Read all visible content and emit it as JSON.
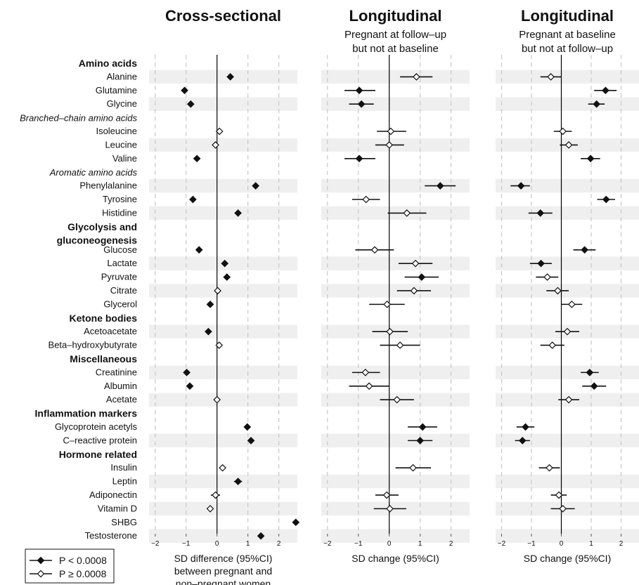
{
  "chart_data": {
    "type": "forest",
    "panels": [
      {
        "key": "cross",
        "title": "Cross-sectional",
        "subtitle": [],
        "xlabel": [
          "SD difference (95%CI)",
          "between pregnant and",
          "non–pregnant women"
        ]
      },
      {
        "key": "long1",
        "title": "Longitudinal",
        "subtitle": [
          "Pregnant at follow–up",
          "but not at baseline"
        ],
        "xlabel": [
          "SD change (95%CI)"
        ]
      },
      {
        "key": "long2",
        "title": "Longitudinal",
        "subtitle": [
          "Pregnant at baseline",
          "but not at follow–up"
        ],
        "xlabel": [
          "SD change (95%CI)"
        ]
      }
    ],
    "xlim": [
      -2.2,
      2.6
    ],
    "xticks": [
      -2,
      -1,
      0,
      1,
      2
    ],
    "xtick_labels": [
      "−2",
      "−1",
      "0",
      "1",
      "2"
    ],
    "legend": [
      {
        "marker": "filled-diamond",
        "label": "P < 0.0008"
      },
      {
        "marker": "open-diamond",
        "label": "P ≥ 0.0008"
      }
    ],
    "legend_position": "bottom-left",
    "rows": [
      {
        "kind": "group",
        "label": "Amino acids",
        "row": 0
      },
      {
        "kind": "item",
        "label": "Alanine",
        "row": 1,
        "cross": [
          0.43,
          0.4,
          0.46,
          1
        ],
        "long1": [
          0.88,
          0.35,
          1.4,
          0
        ],
        "long2": [
          -0.35,
          -0.7,
          0.0,
          0
        ]
      },
      {
        "kind": "item",
        "label": "Glutamine",
        "row": 2,
        "cross": [
          -1.05,
          -1.08,
          -1.02,
          1
        ],
        "long1": [
          -0.97,
          -1.45,
          -0.45,
          1
        ],
        "long2": [
          1.48,
          1.1,
          1.85,
          1
        ]
      },
      {
        "kind": "item",
        "label": "Glycine",
        "row": 3,
        "cross": [
          -0.85,
          -0.88,
          -0.82,
          1
        ],
        "long1": [
          -0.9,
          -1.3,
          -0.5,
          1
        ],
        "long2": [
          1.18,
          0.9,
          1.45,
          1
        ]
      },
      {
        "kind": "subgroup",
        "label": "Branched–chain amino acids",
        "row": 4
      },
      {
        "kind": "item",
        "label": "Isoleucine",
        "row": 5,
        "cross": [
          0.08,
          0.05,
          0.11,
          0
        ],
        "long1": [
          0.05,
          -0.4,
          0.55,
          0
        ],
        "long2": [
          0.05,
          -0.25,
          0.35,
          0
        ]
      },
      {
        "kind": "item",
        "label": "Leucine",
        "row": 6,
        "cross": [
          -0.05,
          -0.08,
          -0.02,
          0
        ],
        "long1": [
          0.0,
          -0.45,
          0.48,
          0
        ],
        "long2": [
          0.25,
          -0.05,
          0.55,
          0
        ]
      },
      {
        "kind": "item",
        "label": "Valine",
        "row": 7,
        "cross": [
          -0.65,
          -0.68,
          -0.62,
          1
        ],
        "long1": [
          -0.97,
          -1.45,
          -0.45,
          1
        ],
        "long2": [
          0.98,
          0.65,
          1.3,
          1
        ]
      },
      {
        "kind": "subgroup",
        "label": "Aromatic amino acids",
        "row": 8
      },
      {
        "kind": "item",
        "label": "Phenylalanine",
        "row": 9,
        "cross": [
          1.25,
          1.22,
          1.28,
          1
        ],
        "long1": [
          1.65,
          1.15,
          2.15,
          1
        ],
        "long2": [
          -1.35,
          -1.7,
          -1.05,
          1
        ]
      },
      {
        "kind": "item",
        "label": "Tyrosine",
        "row": 10,
        "cross": [
          -0.78,
          -0.81,
          -0.75,
          1
        ],
        "long1": [
          -0.75,
          -1.2,
          -0.3,
          0
        ],
        "long2": [
          1.5,
          1.2,
          1.8,
          1
        ]
      },
      {
        "kind": "item",
        "label": "Histidine",
        "row": 11,
        "cross": [
          0.68,
          0.65,
          0.71,
          1
        ],
        "long1": [
          0.57,
          -0.05,
          1.2,
          0
        ],
        "long2": [
          -0.7,
          -1.1,
          -0.3,
          1
        ]
      },
      {
        "kind": "group",
        "label": "Glycolysis and",
        "row": 12
      },
      {
        "kind": "group",
        "label": "gluconeogenesis",
        "row": 13
      },
      {
        "kind": "item",
        "label": "Glucose",
        "row": 13.7,
        "cross": [
          -0.58,
          -0.61,
          -0.55,
          1
        ],
        "long1": [
          -0.47,
          -1.1,
          0.15,
          0
        ],
        "long2": [
          0.78,
          0.4,
          1.15,
          1
        ]
      },
      {
        "kind": "item",
        "label": "Lactate",
        "row": 14.7,
        "cross": [
          0.25,
          0.22,
          0.28,
          1
        ],
        "long1": [
          0.85,
          0.3,
          1.4,
          0
        ],
        "long2": [
          -0.68,
          -1.05,
          -0.32,
          1
        ]
      },
      {
        "kind": "item",
        "label": "Pyruvate",
        "row": 15.7,
        "cross": [
          0.32,
          0.29,
          0.35,
          1
        ],
        "long1": [
          1.05,
          0.5,
          1.6,
          1
        ],
        "long2": [
          -0.47,
          -0.85,
          -0.1,
          0
        ]
      },
      {
        "kind": "item",
        "label": "Citrate",
        "row": 16.7,
        "cross": [
          0.02,
          -0.01,
          0.05,
          0
        ],
        "long1": [
          0.8,
          0.25,
          1.35,
          0
        ],
        "long2": [
          -0.12,
          -0.5,
          0.25,
          0
        ]
      },
      {
        "kind": "item",
        "label": "Glycerol",
        "row": 17.7,
        "cross": [
          -0.22,
          -0.25,
          -0.19,
          1
        ],
        "long1": [
          -0.07,
          -0.65,
          0.5,
          0
        ],
        "long2": [
          0.35,
          0.0,
          0.7,
          0
        ]
      },
      {
        "kind": "group",
        "label": "Ketone bodies",
        "row": 18.7
      },
      {
        "kind": "item",
        "label": "Acetoacetate",
        "row": 19.7,
        "cross": [
          -0.28,
          -0.31,
          -0.25,
          1
        ],
        "long1": [
          0.02,
          -0.55,
          0.6,
          0
        ],
        "long2": [
          0.2,
          -0.2,
          0.6,
          0
        ]
      },
      {
        "kind": "item",
        "label": "Beta–hydroxybutyrate",
        "row": 20.7,
        "cross": [
          0.07,
          0.04,
          0.1,
          0
        ],
        "long1": [
          0.35,
          -0.3,
          1.0,
          0
        ],
        "long2": [
          -0.3,
          -0.7,
          0.1,
          0
        ]
      },
      {
        "kind": "group",
        "label": "Miscellaneous",
        "row": 21.7
      },
      {
        "kind": "item",
        "label": "Creatinine",
        "row": 22.7,
        "cross": [
          -0.98,
          -1.01,
          -0.95,
          1
        ],
        "long1": [
          -0.77,
          -1.2,
          -0.3,
          0
        ],
        "long2": [
          0.95,
          0.65,
          1.25,
          1
        ]
      },
      {
        "kind": "item",
        "label": "Albumin",
        "row": 23.7,
        "cross": [
          -0.88,
          -0.91,
          -0.85,
          1
        ],
        "long1": [
          -0.65,
          -1.3,
          0.0,
          0
        ],
        "long2": [
          1.1,
          0.7,
          1.5,
          1
        ]
      },
      {
        "kind": "item",
        "label": "Acetate",
        "row": 24.7,
        "cross": [
          0.0,
          -0.03,
          0.03,
          0
        ],
        "long1": [
          0.25,
          -0.3,
          0.8,
          0
        ],
        "long2": [
          0.25,
          -0.1,
          0.6,
          0
        ]
      },
      {
        "kind": "group",
        "label": "Inflammation markers",
        "row": 25.7
      },
      {
        "kind": "item",
        "label": "Glycoprotein acetyls",
        "row": 26.7,
        "cross": [
          0.98,
          0.95,
          1.01,
          1
        ],
        "long1": [
          1.08,
          0.6,
          1.55,
          1
        ],
        "long2": [
          -1.2,
          -1.5,
          -0.9,
          1
        ]
      },
      {
        "kind": "item",
        "label": "C–reactive protein",
        "row": 27.7,
        "cross": [
          1.1,
          1.07,
          1.13,
          1
        ],
        "long1": [
          1.0,
          0.6,
          1.4,
          1
        ],
        "long2": [
          -1.3,
          -1.55,
          -1.05,
          1
        ]
      },
      {
        "kind": "group",
        "label": "Hormone related",
        "row": 28.7
      },
      {
        "kind": "item",
        "label": "Insulin",
        "row": 29.7,
        "cross": [
          0.18,
          0.1,
          0.26,
          0
        ],
        "long1": [
          0.77,
          0.2,
          1.35,
          0
        ],
        "long2": [
          -0.4,
          -0.75,
          -0.05,
          0
        ]
      },
      {
        "kind": "item",
        "label": "Leptin",
        "row": 30.7,
        "cross": [
          0.68,
          0.55,
          0.81,
          1
        ],
        "long1": null,
        "long2": null
      },
      {
        "kind": "item",
        "label": "Adiponectin",
        "row": 31.7,
        "cross": [
          -0.05,
          -0.2,
          0.1,
          0
        ],
        "long1": [
          -0.08,
          -0.45,
          0.3,
          0
        ],
        "long2": [
          -0.08,
          -0.35,
          0.18,
          0
        ]
      },
      {
        "kind": "item",
        "label": "Vitamin D",
        "row": 32.7,
        "cross": [
          -0.22,
          -0.25,
          -0.19,
          0
        ],
        "long1": [
          0.02,
          -0.5,
          0.55,
          0
        ],
        "long2": [
          0.05,
          -0.35,
          0.45,
          0
        ]
      },
      {
        "kind": "item",
        "label": "SHBG",
        "row": 33.7,
        "cross": [
          2.55,
          2.52,
          2.58,
          1
        ],
        "long1": null,
        "long2": null
      },
      {
        "kind": "item",
        "label": "Testosterone",
        "row": 34.7,
        "cross": [
          1.42,
          1.39,
          1.45,
          1
        ],
        "long1": null,
        "long2": null
      }
    ]
  }
}
